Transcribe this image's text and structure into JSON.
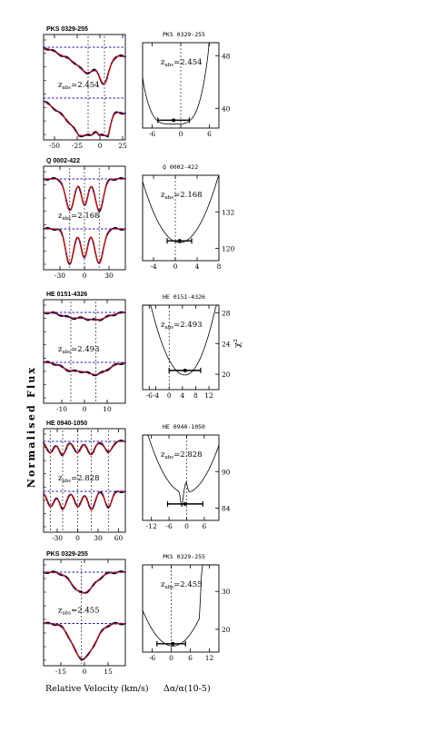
{
  "figure": {
    "ylabel_left": "Normalised Flux",
    "ylabel_right": "χ²",
    "xlabel_left": "Relative Velocity (km/s)",
    "xlabel_right": "Δα/α(10-5)",
    "colors": {
      "frame": "#000000",
      "data": "#000000",
      "fit": "#d01010",
      "continuum": "#1a1acc",
      "marker": "#000000"
    }
  },
  "chart_data": [
    {
      "type": "line",
      "panel": "flux",
      "system": "PKS 0329-255",
      "title": "PKS 0329-255",
      "xlim": [
        -62,
        28
      ],
      "xticks": [
        -50,
        -25,
        0,
        25
      ],
      "components": [
        -13,
        5
      ],
      "zabs_prefix": "z",
      "zabs_sub": "abs",
      "zabs_value": "=2.454",
      "spectra": [
        {
          "offset": 1.0,
          "profile": "wide",
          "depth": 0.9,
          "name": "upper"
        },
        {
          "offset": 0.0,
          "profile": "deep",
          "depth": 1.1,
          "name": "lower"
        }
      ]
    },
    {
      "type": "line",
      "panel": "chi2",
      "system": "PKS 0329-255",
      "title": "PKS 0329-255",
      "xlim": [
        -8,
        8
      ],
      "xticks": [
        -6,
        0,
        6
      ],
      "ylim": [
        37,
        50
      ],
      "yticks": [
        40,
        48
      ],
      "zabs_prefix": "z",
      "zabs_sub": "abs",
      "zabs_value": "=2.454",
      "shape": "flat",
      "best_fit": -1.5,
      "error_lo": -4.8,
      "error_hi": 1.8,
      "point_y": 38.2
    },
    {
      "type": "line",
      "panel": "flux",
      "system": "Q 0002-422",
      "title": "Q 0002-422",
      "xlim": [
        -50,
        50
      ],
      "xticks": [
        -30,
        0,
        30
      ],
      "components": [
        -18,
        0,
        18
      ],
      "zabs_prefix": "z",
      "zabs_sub": "abs",
      "zabs_value": "=2.168",
      "spectra": [
        {
          "offset": 1.0,
          "profile": "triple",
          "depth": 1.0,
          "name": "upper"
        },
        {
          "offset": 0.0,
          "profile": "triple",
          "depth": 1.1,
          "name": "lower"
        }
      ]
    },
    {
      "type": "line",
      "panel": "chi2",
      "system": "Q 0002-422",
      "title": "Q 0002-422",
      "xlim": [
        -6,
        8
      ],
      "xticks": [
        -4,
        0,
        4,
        8
      ],
      "ylim": [
        116,
        144
      ],
      "yticks": [
        120,
        132
      ],
      "zabs_prefix": "z",
      "zabs_sub": "abs",
      "zabs_value": "=2.168",
      "shape": "parabola",
      "best_fit": 0.8,
      "error_lo": -1.5,
      "error_hi": 3.0,
      "point_y": 122.5
    },
    {
      "type": "line",
      "panel": "flux",
      "system": "HE 0151-4326",
      "title": "HE 0151-4326",
      "xlim": [
        -18,
        18
      ],
      "xticks": [
        -10,
        0,
        10
      ],
      "components": [
        -6,
        5
      ],
      "zabs_prefix": "z",
      "zabs_sub": "abs",
      "zabs_value": "=2.493",
      "spectra": [
        {
          "offset": 1.0,
          "profile": "shallow",
          "depth": 0.25,
          "name": "upper"
        },
        {
          "offset": 0.0,
          "profile": "shallow",
          "depth": 0.4,
          "name": "lower"
        }
      ]
    },
    {
      "type": "line",
      "panel": "chi2",
      "system": "HE 0151-4326",
      "title": "HE 0151-4326",
      "xlim": [
        -8,
        15
      ],
      "xticks": [
        -6,
        -4,
        0,
        4,
        8,
        12
      ],
      "ylim": [
        18,
        29
      ],
      "yticks": [
        20,
        24,
        28
      ],
      "zabs_prefix": "z",
      "zabs_sub": "abs",
      "zabs_value": "=2.493",
      "shape": "asym",
      "best_fit": 4.8,
      "error_lo": 0.0,
      "error_hi": 9.5,
      "point_y": 20.5
    },
    {
      "type": "line",
      "panel": "flux",
      "system": "HE 0940-1050",
      "title": "HE 0940-1050",
      "xlim": [
        -50,
        70
      ],
      "xticks": [
        -30,
        0,
        30,
        60
      ],
      "components": [
        -40,
        -22,
        0,
        20,
        45
      ],
      "zabs_prefix": "z",
      "zabs_sub": "abs",
      "zabs_value": "=2.828",
      "spectra": [
        {
          "offset": 1.0,
          "profile": "multi",
          "depth": 0.55,
          "name": "upper"
        },
        {
          "offset": 0.0,
          "profile": "multi",
          "depth": 0.75,
          "name": "lower"
        }
      ]
    },
    {
      "type": "line",
      "panel": "chi2",
      "system": "HE 0940-1050",
      "title": "HE 0940-1050",
      "xlim": [
        -15,
        11
      ],
      "xticks": [
        -12,
        -6,
        0,
        6
      ],
      "ylim": [
        82,
        96
      ],
      "yticks": [
        84,
        90
      ],
      "zabs_prefix": "z",
      "zabs_sub": "abs",
      "zabs_value": "=2.828",
      "shape": "notch",
      "best_fit": -0.5,
      "error_lo": -6.5,
      "error_hi": 5.5,
      "point_y": 84.7
    },
    {
      "type": "line",
      "panel": "flux",
      "system": "PKS 0329-255",
      "title": "PKS 0329-255",
      "xlim": [
        -26,
        26
      ],
      "xticks": [
        -15,
        0,
        15
      ],
      "components": [
        -2
      ],
      "zabs_prefix": "z",
      "zabs_sub": "abs",
      "zabs_value": "=2.455",
      "spectra": [
        {
          "offset": 1.0,
          "profile": "single",
          "depth": 0.5,
          "name": "upper"
        },
        {
          "offset": 0.0,
          "profile": "single",
          "depth": 0.85,
          "name": "lower"
        }
      ]
    },
    {
      "type": "line",
      "panel": "chi2",
      "system": "PKS 0329-255",
      "title": "PKS 0329-255",
      "xlim": [
        -9,
        15
      ],
      "xticks": [
        -6,
        0,
        6,
        12
      ],
      "ylim": [
        14,
        37
      ],
      "yticks": [
        20,
        30
      ],
      "zabs_prefix": "z",
      "zabs_sub": "abs",
      "zabs_value": "=2.455",
      "shape": "steep",
      "best_fit": 0.5,
      "error_lo": -4.5,
      "error_hi": 4.5,
      "point_y": 16.2
    }
  ]
}
